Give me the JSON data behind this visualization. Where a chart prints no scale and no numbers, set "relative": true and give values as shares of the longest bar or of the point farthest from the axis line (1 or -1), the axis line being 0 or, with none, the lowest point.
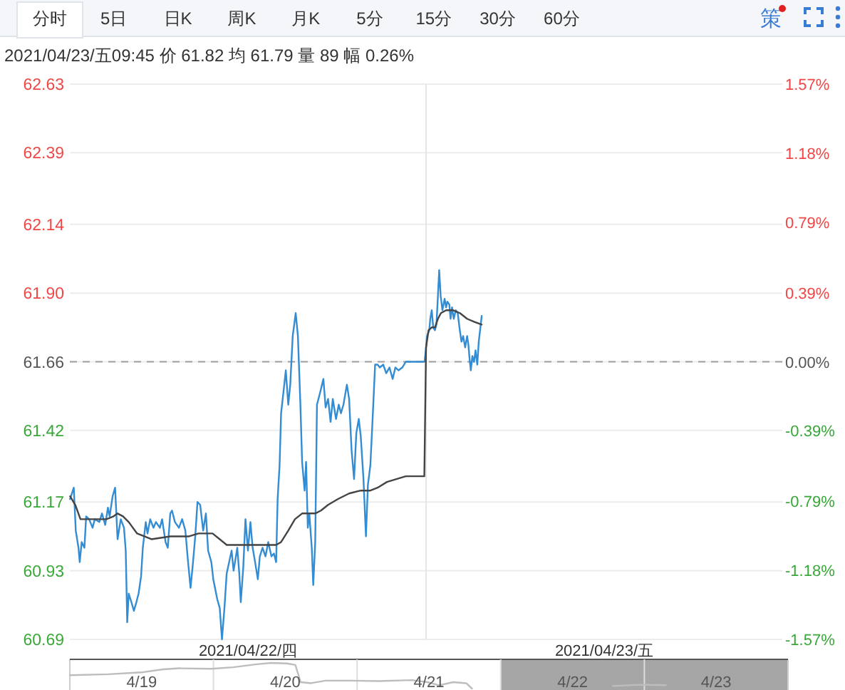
{
  "chart_data": [
    {
      "type": "line",
      "title": "2021/04/23/五09:45  价 61.82  均 61.79  量 89  幅 0.26%",
      "annotations": [
        "分时",
        "5日",
        "日K",
        "周K",
        "月K",
        "5分",
        "15分",
        "30分",
        "60分",
        "策"
      ],
      "xlim": [
        "2021-04-22T06:00",
        "2021-04-24T06:00"
      ],
      "xticks": [
        {
          "value": "2021-04-22T18:00",
          "label": "2021/04/22/四"
        },
        {
          "value": "2021-04-23T18:00",
          "label": "2021/04/23/五"
        }
      ],
      "series": [
        {
          "color": "#348cd2",
          "x": [
            "2021-04-22T06:01",
            "2021-04-22T06:16",
            "2021-04-22T06:24",
            "2021-04-22T06:35",
            "2021-04-22T06:40",
            "2021-04-22T06:48",
            "2021-04-22T06:59",
            "2021-04-22T07:06",
            "2021-04-22T07:18",
            "2021-04-22T07:32",
            "2021-04-22T07:41",
            "2021-04-22T07:59",
            "2021-04-22T08:10",
            "2021-04-22T08:23",
            "2021-04-22T08:34",
            "2021-04-22T08:41",
            "2021-04-22T08:53",
            "2021-04-22T09:03",
            "2021-04-22T09:13",
            "2021-04-22T09:26",
            "2021-04-22T09:39",
            "2021-04-22T09:46",
            "2021-04-22T09:52",
            "2021-04-22T09:58",
            "2021-04-22T10:09",
            "2021-04-22T10:19",
            "2021-04-22T10:29",
            "2021-04-22T10:38",
            "2021-04-22T10:48",
            "2021-04-22T10:55",
            "2021-04-22T11:07",
            "2021-04-22T11:14",
            "2021-04-22T11:25",
            "2021-04-22T11:38",
            "2021-04-22T11:48",
            "2021-04-22T12:04",
            "2021-04-22T12:13",
            "2021-04-22T12:27",
            "2021-04-22T12:36",
            "2021-04-22T12:46",
            "2021-04-22T12:53",
            "2021-04-22T13:05",
            "2021-04-22T13:21",
            "2021-04-22T13:34",
            "2021-04-22T13:47",
            "2021-04-22T13:58",
            "2021-04-22T14:08",
            "2021-04-22T14:17",
            "2021-04-22T14:27",
            "2021-04-22T14:36",
            "2021-04-22T14:47",
            "2021-04-22T14:59",
            "2021-04-22T15:10",
            "2021-04-22T15:19",
            "2021-04-22T15:32",
            "2021-04-22T15:40",
            "2021-04-22T15:56",
            "2021-04-22T16:06",
            "2021-04-22T16:15",
            "2021-04-22T16:25",
            "2021-04-22T16:34",
            "2021-04-22T16:44",
            "2021-04-22T16:54",
            "2021-04-22T17:02",
            "2021-04-22T17:17",
            "2021-04-22T17:25",
            "2021-04-22T17:31",
            "2021-04-22T17:41",
            "2021-04-22T17:50",
            "2021-04-22T18:00",
            "2021-04-22T18:10",
            "2021-04-22T18:19",
            "2021-04-22T18:29",
            "2021-04-22T18:40",
            "2021-04-22T18:48",
            "2021-04-22T18:59",
            "2021-04-22T19:11",
            "2021-04-22T19:22",
            "2021-04-22T19:35",
            "2021-04-22T19:45",
            "2021-04-22T19:54",
            "2021-04-22T20:00",
            "2021-04-22T20:08",
            "2021-04-22T20:14",
            "2021-04-22T20:23",
            "2021-04-22T20:33",
            "2021-04-22T20:43",
            "2021-04-22T20:51",
            "2021-04-22T21:01",
            "2021-04-22T21:13",
            "2021-04-22T21:22",
            "2021-04-22T21:32",
            "2021-04-22T21:39",
            "2021-04-22T21:49",
            "2021-04-22T21:55",
            "2021-04-22T22:02",
            "2021-04-22T22:08",
            "2021-04-22T22:18",
            "2021-04-22T22:24",
            "2021-04-22T22:32",
            "2021-04-22T22:39",
            "2021-04-22T22:51",
            "2021-04-22T23:05",
            "2021-04-22T23:14",
            "2021-04-22T23:24",
            "2021-04-22T23:34",
            "2021-04-22T23:43",
            "2021-04-22T23:56",
            "2021-04-23T00:07",
            "2021-04-23T00:16",
            "2021-04-23T00:26",
            "2021-04-23T00:40",
            "2021-04-23T00:49",
            "2021-04-23T00:59",
            "2021-04-23T01:09",
            "2021-04-23T01:18",
            "2021-04-23T01:28",
            "2021-04-23T01:36",
            "2021-04-23T01:47",
            "2021-04-23T01:57",
            "2021-04-23T02:05",
            "2021-04-23T02:15",
            "2021-04-23T02:25",
            "2021-04-23T02:34",
            "2021-04-23T02:44",
            "2021-04-23T02:53",
            "2021-04-23T03:07",
            "2021-04-23T03:19",
            "2021-04-23T03:32",
            "2021-04-23T03:45",
            "2021-04-23T03:56",
            "2021-04-23T04:09",
            "2021-04-23T04:24",
            "2021-04-23T04:38",
            "2021-04-23T04:57",
            "2021-04-23T05:54",
            "2021-04-23T06:00",
            "2021-04-23T06:04",
            "2021-04-23T06:13",
            "2021-04-23T06:17",
            "2021-04-23T06:23",
            "2021-04-23T06:29",
            "2021-04-23T06:36",
            "2021-04-23T06:42",
            "2021-04-23T06:48",
            "2021-04-23T06:53",
            "2021-04-23T06:59",
            "2021-04-23T07:06",
            "2021-04-23T07:15",
            "2021-04-23T07:21",
            "2021-04-23T07:26",
            "2021-04-23T07:34",
            "2021-04-23T07:39",
            "2021-04-23T07:45",
            "2021-04-23T07:52",
            "2021-04-23T08:00",
            "2021-04-23T08:08",
            "2021-04-23T08:15",
            "2021-04-23T08:23",
            "2021-04-23T08:30",
            "2021-04-23T08:38",
            "2021-04-23T08:46",
            "2021-04-23T08:51",
            "2021-04-23T08:57",
            "2021-04-23T09:01",
            "2021-04-23T09:07",
            "2021-04-23T09:14",
            "2021-04-23T09:20",
            "2021-04-23T09:27",
            "2021-04-23T09:33",
            "2021-04-23T09:45"
          ],
          "values": [
            61.18,
            61.22,
            61.07,
            61.01,
            60.96,
            61.03,
            61.01,
            61.12,
            61.11,
            61.08,
            61.11,
            61.1,
            61.13,
            61.09,
            61.15,
            61.12,
            61.19,
            61.22,
            61.04,
            61.11,
            61.08,
            61.0,
            60.75,
            60.85,
            60.82,
            60.79,
            60.82,
            60.85,
            60.91,
            61.01,
            61.1,
            61.06,
            61.11,
            61.08,
            61.1,
            61.08,
            61.11,
            61.03,
            61.01,
            61.13,
            61.14,
            61.1,
            61.08,
            61.11,
            61.07,
            60.96,
            60.87,
            60.95,
            61.05,
            61.17,
            61.16,
            61.07,
            61.13,
            61.0,
            60.96,
            60.9,
            60.83,
            60.8,
            60.69,
            60.8,
            60.92,
            60.96,
            61.0,
            60.93,
            61.01,
            60.92,
            60.82,
            60.94,
            61.11,
            61.0,
            61.1,
            61.01,
            60.96,
            60.9,
            60.98,
            61.01,
            60.98,
            61.03,
            60.98,
            60.99,
            60.96,
            61.18,
            61.3,
            61.48,
            61.55,
            61.63,
            61.51,
            61.58,
            61.75,
            61.83,
            61.75,
            61.51,
            61.31,
            61.21,
            61.31,
            61.08,
            61.13,
            61.01,
            60.88,
            61.03,
            61.51,
            61.55,
            61.6,
            61.5,
            61.53,
            61.45,
            61.53,
            61.46,
            61.51,
            61.48,
            61.51,
            61.58,
            61.53,
            61.35,
            61.25,
            61.41,
            61.46,
            61.4,
            61.25,
            61.05,
            61.23,
            61.3,
            61.48,
            61.65,
            61.65,
            61.64,
            61.65,
            61.62,
            61.64,
            61.6,
            61.64,
            61.63,
            61.64,
            61.66,
            61.66,
            61.66,
            61.71,
            61.75,
            61.77,
            61.81,
            61.84,
            61.78,
            61.77,
            61.79,
            61.89,
            61.98,
            61.89,
            61.84,
            61.88,
            61.85,
            61.87,
            61.86,
            61.81,
            61.85,
            61.81,
            61.84,
            61.83,
            61.78,
            61.73,
            61.75,
            61.71,
            61.75,
            61.72,
            61.66,
            61.63,
            61.68,
            61.66,
            61.7,
            61.65,
            61.73,
            61.82
          ]
        },
        {
          "color": "#444444",
          "x": [
            "2021-04-22T06:01",
            "2021-04-22T06:22",
            "2021-04-22T06:43",
            "2021-04-22T07:03",
            "2021-04-22T07:41",
            "2021-04-22T08:28",
            "2021-04-22T08:57",
            "2021-04-22T09:13",
            "2021-04-22T09:35",
            "2021-04-22T09:58",
            "2021-04-22T10:32",
            "2021-04-22T11:01",
            "2021-04-22T11:30",
            "2021-04-22T12:46",
            "2021-04-22T14:02",
            "2021-04-22T14:40",
            "2021-04-22T15:19",
            "2021-04-22T15:37",
            "2021-04-22T16:06",
            "2021-04-22T16:34",
            "2021-04-22T17:12",
            "2021-04-22T19:06",
            "2021-04-22T19:54",
            "2021-04-22T20:14",
            "2021-04-22T20:43",
            "2021-04-22T21:10",
            "2021-04-22T21:39",
            "2021-04-22T22:08",
            "2021-04-22T22:32",
            "2021-04-22T22:55",
            "2021-04-22T23:24",
            "2021-04-23T00:03",
            "2021-04-23T00:49",
            "2021-04-23T01:36",
            "2021-04-23T02:15",
            "2021-04-23T02:44",
            "2021-04-23T03:22",
            "2021-04-23T04:00",
            "2021-04-23T04:38",
            "2021-04-23T05:53",
            "2021-04-23T06:00",
            "2021-04-23T06:10",
            "2021-04-23T06:23",
            "2021-04-23T06:36",
            "2021-04-23T06:48",
            "2021-04-23T07:00",
            "2021-04-23T07:21",
            "2021-04-23T07:48",
            "2021-04-23T08:17",
            "2021-04-23T08:46",
            "2021-04-23T09:14",
            "2021-04-23T09:45"
          ],
          "values": [
            61.19,
            61.16,
            61.11,
            61.11,
            61.11,
            61.11,
            61.12,
            61.13,
            61.12,
            61.1,
            61.06,
            61.05,
            61.04,
            61.05,
            61.05,
            61.06,
            61.06,
            61.06,
            61.04,
            61.02,
            61.02,
            61.02,
            61.02,
            61.03,
            61.07,
            61.11,
            61.13,
            61.13,
            61.13,
            61.14,
            61.16,
            61.18,
            61.2,
            61.21,
            61.21,
            61.22,
            61.24,
            61.25,
            61.26,
            61.26,
            61.71,
            61.77,
            61.78,
            61.78,
            61.81,
            61.83,
            61.84,
            61.84,
            61.83,
            61.81,
            61.8,
            61.79
          ]
        }
      ],
      "ylim": [
        60.69,
        62.63
      ],
      "yticks": [
        60.69,
        60.93,
        61.17,
        61.42,
        61.66,
        {
          "value": 61.9,
          "label": "61.90"
        },
        62.14,
        62.39,
        62.63
      ],
      "y2lim": [
        -1.57,
        1.57
      ],
      "y2ticks": [
        {
          "value": -1.57,
          "label": "-1.57%"
        },
        {
          "value": -1.18,
          "label": "-1.18%"
        },
        {
          "value": -0.79,
          "label": "-0.79%"
        },
        {
          "value": -0.39,
          "label": "-0.39%"
        },
        {
          "value": 0,
          "label": "0.00%"
        },
        {
          "value": 0.39,
          "label": "0.39%"
        },
        {
          "value": 0.79,
          "label": "0.79%"
        },
        {
          "value": 1.18,
          "label": "1.18%"
        },
        {
          "value": 1.57,
          "label": "1.57%"
        }
      ],
      "ref_lines": [
        {
          "axis": "y",
          "value": 61.66,
          "color": "#a0a0a0",
          "line_style": "dashed"
        },
        {
          "axis": "x",
          "value": "2021-04-23T06:00",
          "color": "#e6e6e6"
        }
      ],
      "grid": "y"
    },
    {
      "type": "line",
      "relative": true,
      "xlim": [
        "2021-04-19T06:00",
        "2021-04-24T06:00"
      ],
      "xticks": [
        {
          "value": "2021-04-19T18:00",
          "label": "4/19"
        },
        {
          "value": "2021-04-20T18:00",
          "label": "4/20"
        },
        {
          "value": "2021-04-21T18:00",
          "label": "4/21"
        },
        {
          "value": "2021-04-22T18:00",
          "label": "4/22"
        },
        {
          "value": "2021-04-23T18:00",
          "label": "4/23"
        }
      ],
      "series": [
        {
          "color": "#bdbdbd",
          "x": [
            "2021-04-19T06:00",
            "2021-04-19T12:29",
            "2021-04-19T17:53",
            "2021-04-19T21:36",
            "2021-04-20T00:14",
            "2021-04-20T05:38",
            "2021-04-20T09:16",
            "2021-04-20T12:58",
            "2021-04-20T15:36",
            "2021-04-20T18:19",
            "2021-04-20T19:41",
            "2021-04-20T20:34",
            "2021-04-20T22:19",
            "2021-04-21T00:43",
            "2021-04-21T05:02",
            "2021-04-21T09:36",
            "2021-04-21T15:07",
            "2021-04-21T17:46",
            "2021-04-21T19:41",
            "2021-04-21T22:05",
            "2021-04-22T00:14",
            "2021-04-22T01:12",
            "2021-04-22T13:12",
            "2021-04-23T00:43",
            "2021-04-23T05:17",
            "2021-04-23T09:36"
          ],
          "values": [
            0.52,
            0.56,
            0.63,
            0.75,
            0.79,
            0.77,
            0.83,
            0.94,
            1,
            0.98,
            0.92,
            0.25,
            0.21,
            0.31,
            0.31,
            0.29,
            0.33,
            0.25,
            0.13,
            0.25,
            0.21,
            0,
            null,
            0.1,
            0.15,
            0.13
          ]
        }
      ],
      "bands": [
        {
          "axis": "x",
          "from": "2021-04-22T06:00",
          "to": "2021-04-24T06:00",
          "color": "#a6a6a6"
        }
      ],
      "ref_lines": [
        {
          "axis": "x",
          "value": "2021-04-20T06:00",
          "color": "#dddddd"
        },
        {
          "axis": "x",
          "value": "2021-04-21T06:00",
          "color": "#dddddd"
        },
        {
          "axis": "x",
          "value": "2021-04-22T06:00",
          "color": "#dddddd"
        },
        {
          "axis": "x",
          "value": "2021-04-23T06:00",
          "color": "#dddddd"
        }
      ]
    }
  ]
}
